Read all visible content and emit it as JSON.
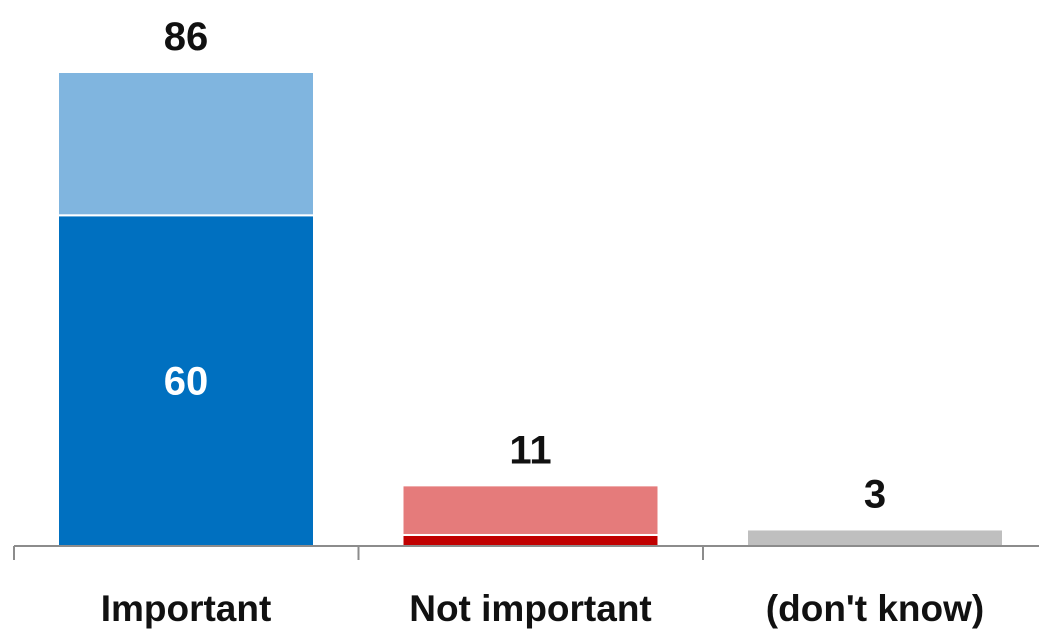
{
  "chart_data": {
    "type": "bar",
    "stacked": true,
    "categories": [
      "Important",
      "Not important",
      "(don't know)"
    ],
    "series": [
      {
        "values": [
          60,
          2,
          0
        ]
      },
      {
        "values": [
          26,
          9,
          3
        ]
      }
    ],
    "totals": [
      "86",
      "11",
      "3"
    ],
    "inner_labels": [
      "60",
      "",
      ""
    ],
    "colors": {
      "bottom": [
        "#0070c0",
        "#c00000",
        "#bfbfbf"
      ],
      "top": [
        "#80b5df",
        "#e57b7b",
        "#bfbfbf"
      ]
    },
    "ylim": [
      0,
      86
    ],
    "grid": false,
    "legend": "none"
  }
}
